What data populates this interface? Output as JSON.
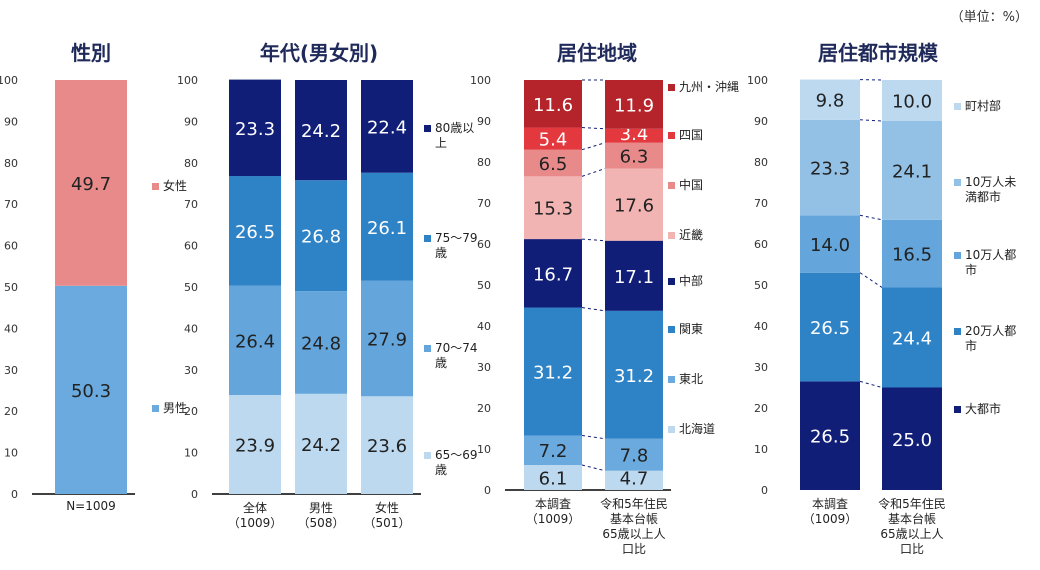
{
  "unit_note": "（単位：%）",
  "colors": {
    "gender": {
      "女性": "#e88a8a",
      "男性": "#6aaade"
    },
    "age": [
      "#bcd9f0",
      "#64a6dc",
      "#2e82c6",
      "#101e78"
    ],
    "region": [
      "#bcd9f0",
      "#6aaade",
      "#2e82c6",
      "#101e78",
      "#f2b3b3",
      "#e88a8a",
      "#e2383e",
      "#b4242a"
    ],
    "city": [
      "#101e78",
      "#2e82c6",
      "#64a6dc",
      "#93c1e6",
      "#bcd9f0"
    ]
  },
  "chart_data": [
    {
      "type": "bar",
      "stacked": true,
      "title": "性別",
      "categories": [
        "N=1009"
      ],
      "ylim": [
        0,
        100
      ],
      "yticks": [
        0,
        10,
        20,
        30,
        40,
        50,
        60,
        70,
        80,
        90,
        100
      ],
      "legend_position": "right",
      "series": [
        {
          "name": "男性",
          "values": [
            50.3
          ]
        },
        {
          "name": "女性",
          "values": [
            49.7
          ]
        }
      ]
    },
    {
      "type": "bar",
      "stacked": true,
      "title": "年代(男女別)",
      "categories": [
        "全体\n（1009）",
        "男性\n（508）",
        "女性\n（501）"
      ],
      "ylim": [
        0,
        100
      ],
      "yticks": [
        0,
        10,
        20,
        30,
        40,
        50,
        60,
        70,
        80,
        90,
        100
      ],
      "legend_position": "right",
      "series": [
        {
          "name": "65～69\n歳",
          "values": [
            23.9,
            24.2,
            23.6
          ]
        },
        {
          "name": "70～74\n歳",
          "values": [
            26.4,
            24.8,
            27.9
          ]
        },
        {
          "name": "75～79\n歳",
          "values": [
            26.5,
            26.8,
            26.1
          ]
        },
        {
          "name": "80歳以\n上",
          "values": [
            23.3,
            24.2,
            22.4
          ]
        }
      ]
    },
    {
      "type": "bar",
      "stacked": true,
      "title": "居住地域",
      "categories": [
        "本調査\n（1009）",
        "令和5年住民\n基本台帳\n65歳以上人\n口比"
      ],
      "ylim": [
        0,
        100
      ],
      "yticks": [
        0,
        10,
        20,
        30,
        40,
        50,
        60,
        70,
        80,
        90,
        100
      ],
      "legend_position": "right",
      "series": [
        {
          "name": "北海道",
          "values": [
            6.1,
            4.7
          ]
        },
        {
          "name": "東北",
          "values": [
            7.2,
            7.8
          ]
        },
        {
          "name": "関東",
          "values": [
            31.2,
            31.2
          ]
        },
        {
          "name": "中部",
          "values": [
            16.7,
            17.1
          ]
        },
        {
          "name": "近畿",
          "values": [
            15.3,
            17.6
          ]
        },
        {
          "name": "中国",
          "values": [
            6.5,
            6.3
          ]
        },
        {
          "name": "四国",
          "values": [
            5.4,
            3.4
          ]
        },
        {
          "name": "九州・沖縄",
          "values": [
            11.6,
            11.9
          ]
        }
      ]
    },
    {
      "type": "bar",
      "stacked": true,
      "title": "居住都市規模",
      "categories": [
        "本調査\n（1009）",
        "令和5年住民\n基本台帳\n65歳以上人\n口比"
      ],
      "ylim": [
        0,
        100
      ],
      "yticks": [
        0,
        10,
        20,
        30,
        40,
        50,
        60,
        70,
        80,
        90,
        100
      ],
      "legend_position": "right",
      "series": [
        {
          "name": "大都市",
          "values": [
            26.5,
            25.0
          ]
        },
        {
          "name": "20万人都\n市",
          "values": [
            26.5,
            24.4
          ]
        },
        {
          "name": "10万人都\n市",
          "values": [
            14.0,
            16.5
          ]
        },
        {
          "name": "10万人未\n満都市",
          "values": [
            23.3,
            24.1
          ]
        },
        {
          "name": "町村部",
          "values": [
            9.8,
            10.0
          ]
        }
      ]
    }
  ]
}
